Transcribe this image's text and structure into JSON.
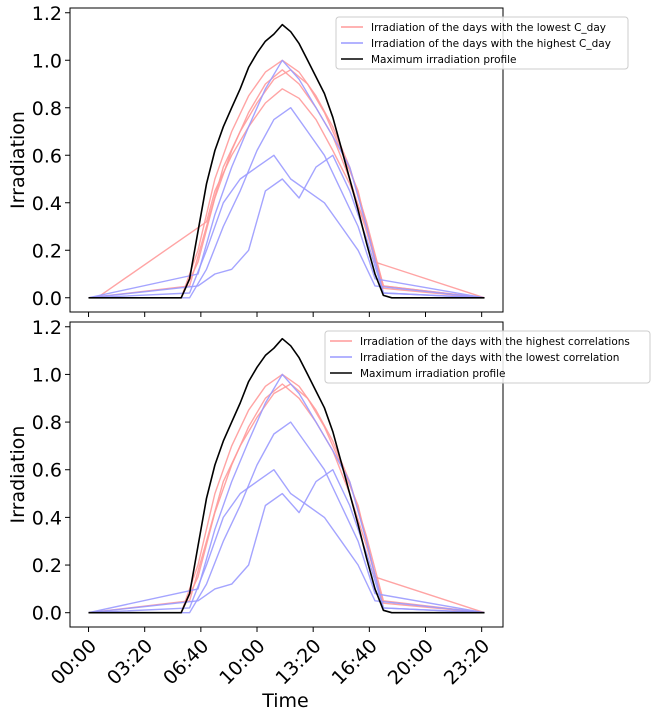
{
  "chart_data": [
    {
      "type": "line",
      "ylabel": "Irradiation",
      "xlabel": "",
      "ylim": [
        -0.06,
        1.22
      ],
      "yticks": [
        "0.0",
        "0.2",
        "0.4",
        "0.6",
        "0.8",
        "1.0",
        "1.2"
      ],
      "ytick_values": [
        0,
        0.2,
        0.4,
        0.6,
        0.8,
        1.0,
        1.2
      ],
      "legend_position": "top-right",
      "legend": [
        {
          "label": "Irradiation of the days with the lowest C_day",
          "color": "#ff9a9a"
        },
        {
          "label": "Irradiation of the days with the highest C_day",
          "color": "#9a9aff"
        },
        {
          "label": "Maximum irradiation profile",
          "color": "#000000"
        }
      ],
      "series": [
        {
          "name": "Maximum irradiation profile",
          "color": "#000000",
          "x": [
            0,
            5.5,
            6.0,
            6.5,
            7.0,
            7.5,
            8.0,
            8.5,
            9.0,
            9.5,
            10.0,
            10.5,
            11.0,
            11.5,
            12.0,
            12.5,
            13.0,
            13.5,
            14.0,
            14.5,
            15.0,
            15.5,
            16.0,
            16.5,
            17.0,
            17.5,
            18.0,
            23.5
          ],
          "y": [
            0,
            0,
            0.08,
            0.28,
            0.48,
            0.62,
            0.72,
            0.8,
            0.88,
            0.97,
            1.03,
            1.08,
            1.11,
            1.15,
            1.12,
            1.07,
            1.0,
            0.93,
            0.86,
            0.76,
            0.63,
            0.5,
            0.37,
            0.23,
            0.1,
            0.01,
            0,
            0
          ]
        },
        {
          "name": "Irradiation of the days with the lowest C_day",
          "color": "#ff9a9a",
          "x": [
            0,
            5.5,
            6.5,
            7.5,
            8.5,
            9.5,
            10.5,
            11.5,
            12.5,
            13.5,
            14.5,
            15.5,
            16.5,
            17.5,
            23.5
          ],
          "y": [
            0,
            0,
            0.2,
            0.5,
            0.7,
            0.85,
            0.95,
            1.0,
            0.95,
            0.85,
            0.72,
            0.55,
            0.32,
            0.05,
            0
          ]
        },
        {
          "name": "Irradiation of the days with the lowest C_day",
          "color": "#ff9a9a",
          "x": [
            0,
            5.5,
            6.5,
            7.5,
            8.5,
            9.5,
            10.5,
            11.5,
            12.5,
            13.5,
            14.5,
            15.5,
            16.5,
            17.5,
            23.5
          ],
          "y": [
            0,
            0,
            0.15,
            0.42,
            0.62,
            0.78,
            0.9,
            0.96,
            0.9,
            0.8,
            0.68,
            0.5,
            0.28,
            0.04,
            0
          ]
        },
        {
          "name": "Irradiation of the days with the lowest C_day",
          "color": "#ff9a9a",
          "x": [
            0.5,
            7.0,
            7.5,
            8.5,
            9.5,
            10.5,
            11.5,
            12.5,
            13.5,
            14.5,
            15.5,
            16.5,
            17.5,
            23.5
          ],
          "y": [
            0,
            0.32,
            0.45,
            0.6,
            0.72,
            0.82,
            0.88,
            0.84,
            0.75,
            0.62,
            0.48,
            0.3,
            0.05,
            0
          ]
        },
        {
          "name": "Irradiation of the days with the lowest C_day",
          "color": "#ff9a9a",
          "x": [
            0,
            6.0,
            7.0,
            8.0,
            9.0,
            10.0,
            11.0,
            12.0,
            13.0,
            14.0,
            15.0,
            16.0,
            17.0,
            23.5
          ],
          "y": [
            0,
            0.05,
            0.3,
            0.55,
            0.7,
            0.82,
            0.92,
            0.96,
            0.9,
            0.78,
            0.62,
            0.45,
            0.15,
            0
          ]
        },
        {
          "name": "Irradiation of the days with the highest C_day",
          "color": "#9a9aff",
          "x": [
            0,
            6.0,
            7.0,
            8.0,
            9.0,
            10.0,
            11.0,
            12.0,
            13.0,
            14.0,
            15.0,
            16.0,
            17.0,
            23.5
          ],
          "y": [
            0,
            0,
            0.12,
            0.3,
            0.45,
            0.62,
            0.75,
            0.8,
            0.7,
            0.6,
            0.45,
            0.3,
            0.08,
            0
          ]
        },
        {
          "name": "Irradiation of the days with the highest C_day",
          "color": "#9a9aff",
          "x": [
            0,
            6.5,
            7.5,
            8.5,
            9.5,
            10.5,
            11.5,
            12.5,
            13.5,
            14.5,
            15.5,
            16.5,
            17.5,
            23.5
          ],
          "y": [
            0,
            0.05,
            0.1,
            0.12,
            0.2,
            0.45,
            0.5,
            0.42,
            0.55,
            0.6,
            0.45,
            0.25,
            0.02,
            0
          ]
        },
        {
          "name": "Irradiation of the days with the highest C_day",
          "color": "#9a9aff",
          "x": [
            0,
            6.5,
            7.5,
            8.5,
            9.5,
            10.5,
            11.5,
            12.5,
            13.5,
            14.5,
            15.5,
            16.5,
            17.5,
            23.5
          ],
          "y": [
            0,
            0.1,
            0.35,
            0.55,
            0.72,
            0.88,
            1.0,
            0.92,
            0.8,
            0.68,
            0.55,
            0.3,
            0.02,
            0
          ]
        },
        {
          "name": "Irradiation of the days with the highest C_day",
          "color": "#9a9aff",
          "x": [
            0,
            6.0,
            7.0,
            8.0,
            9.0,
            10.0,
            11.0,
            12.0,
            13.0,
            14.0,
            15.0,
            16.0,
            17.0,
            23.5
          ],
          "y": [
            0,
            0.02,
            0.2,
            0.4,
            0.5,
            0.55,
            0.6,
            0.5,
            0.45,
            0.4,
            0.3,
            0.2,
            0.05,
            0
          ]
        }
      ]
    },
    {
      "type": "line",
      "ylabel": "Irradiation",
      "xlabel": "Time",
      "xticks": [
        "00:00",
        "03:20",
        "06:40",
        "10:00",
        "13:20",
        "16:40",
        "20:00",
        "23:20"
      ],
      "ylim": [
        -0.06,
        1.22
      ],
      "yticks": [
        "0.0",
        "0.2",
        "0.4",
        "0.6",
        "0.8",
        "1.0",
        "1.2"
      ],
      "ytick_values": [
        0,
        0.2,
        0.4,
        0.6,
        0.8,
        1.0,
        1.2
      ],
      "legend_position": "top-right",
      "legend": [
        {
          "label": "Irradiation of the days with the highest correlations",
          "color": "#ff9a9a"
        },
        {
          "label": "Irradiation of the days with the lowest correlation",
          "color": "#9a9aff"
        },
        {
          "label": "Maximum irradiation profile",
          "color": "#000000"
        }
      ],
      "series": [
        {
          "name": "Maximum irradiation profile",
          "color": "#000000",
          "x": [
            0,
            5.5,
            6.0,
            6.5,
            7.0,
            7.5,
            8.0,
            8.5,
            9.0,
            9.5,
            10.0,
            10.5,
            11.0,
            11.5,
            12.0,
            12.5,
            13.0,
            13.5,
            14.0,
            14.5,
            15.0,
            15.5,
            16.0,
            16.5,
            17.0,
            17.5,
            18.0,
            23.5
          ],
          "y": [
            0,
            0,
            0.08,
            0.28,
            0.48,
            0.62,
            0.72,
            0.8,
            0.88,
            0.97,
            1.03,
            1.08,
            1.11,
            1.15,
            1.12,
            1.07,
            1.0,
            0.93,
            0.86,
            0.76,
            0.63,
            0.5,
            0.37,
            0.23,
            0.1,
            0.01,
            0,
            0
          ]
        },
        {
          "name": "Irradiation of the days with the highest correlations",
          "color": "#ff9a9a",
          "x": [
            0,
            5.5,
            6.5,
            7.5,
            8.5,
            9.5,
            10.5,
            11.5,
            12.5,
            13.5,
            14.5,
            15.5,
            16.5,
            17.5,
            23.5
          ],
          "y": [
            0,
            0,
            0.2,
            0.5,
            0.7,
            0.85,
            0.95,
            1.0,
            0.95,
            0.85,
            0.72,
            0.55,
            0.32,
            0.05,
            0
          ]
        },
        {
          "name": "Irradiation of the days with the highest correlations",
          "color": "#ff9a9a",
          "x": [
            0,
            5.5,
            6.5,
            7.5,
            8.5,
            9.5,
            10.5,
            11.5,
            12.5,
            13.5,
            14.5,
            15.5,
            16.5,
            17.5,
            23.5
          ],
          "y": [
            0,
            0,
            0.15,
            0.42,
            0.62,
            0.78,
            0.9,
            0.96,
            0.9,
            0.8,
            0.68,
            0.5,
            0.28,
            0.04,
            0
          ]
        },
        {
          "name": "Irradiation of the days with the highest correlations",
          "color": "#ff9a9a",
          "x": [
            0,
            6.0,
            7.0,
            8.0,
            9.0,
            10.0,
            11.0,
            12.0,
            13.0,
            14.0,
            15.0,
            16.0,
            17.0,
            23.5
          ],
          "y": [
            0,
            0.05,
            0.3,
            0.55,
            0.7,
            0.82,
            0.92,
            0.96,
            0.9,
            0.78,
            0.62,
            0.45,
            0.15,
            0
          ]
        },
        {
          "name": "Irradiation of the days with the lowest correlation",
          "color": "#9a9aff",
          "x": [
            0,
            6.0,
            7.0,
            8.0,
            9.0,
            10.0,
            11.0,
            12.0,
            13.0,
            14.0,
            15.0,
            16.0,
            17.0,
            23.5
          ],
          "y": [
            0,
            0,
            0.12,
            0.3,
            0.45,
            0.62,
            0.75,
            0.8,
            0.7,
            0.6,
            0.45,
            0.3,
            0.08,
            0
          ]
        },
        {
          "name": "Irradiation of the days with the lowest correlation",
          "color": "#9a9aff",
          "x": [
            0,
            6.5,
            7.5,
            8.5,
            9.5,
            10.5,
            11.5,
            12.5,
            13.5,
            14.5,
            15.5,
            16.5,
            17.5,
            23.5
          ],
          "y": [
            0,
            0.05,
            0.1,
            0.12,
            0.2,
            0.45,
            0.5,
            0.42,
            0.55,
            0.6,
            0.45,
            0.25,
            0.02,
            0
          ]
        },
        {
          "name": "Irradiation of the days with the lowest correlation",
          "color": "#9a9aff",
          "x": [
            0,
            6.5,
            7.5,
            8.5,
            9.5,
            10.5,
            11.5,
            12.5,
            13.5,
            14.5,
            15.5,
            16.5,
            17.5,
            23.5
          ],
          "y": [
            0,
            0.1,
            0.35,
            0.55,
            0.72,
            0.88,
            1.0,
            0.92,
            0.8,
            0.68,
            0.55,
            0.3,
            0.02,
            0
          ]
        },
        {
          "name": "Irradiation of the days with the lowest correlation",
          "color": "#9a9aff",
          "x": [
            0,
            6.0,
            7.0,
            8.0,
            9.0,
            10.0,
            11.0,
            12.0,
            13.0,
            14.0,
            15.0,
            16.0,
            17.0,
            23.5
          ],
          "y": [
            0,
            0.02,
            0.2,
            0.4,
            0.5,
            0.55,
            0.6,
            0.5,
            0.45,
            0.4,
            0.3,
            0.2,
            0.05,
            0
          ]
        }
      ]
    }
  ]
}
